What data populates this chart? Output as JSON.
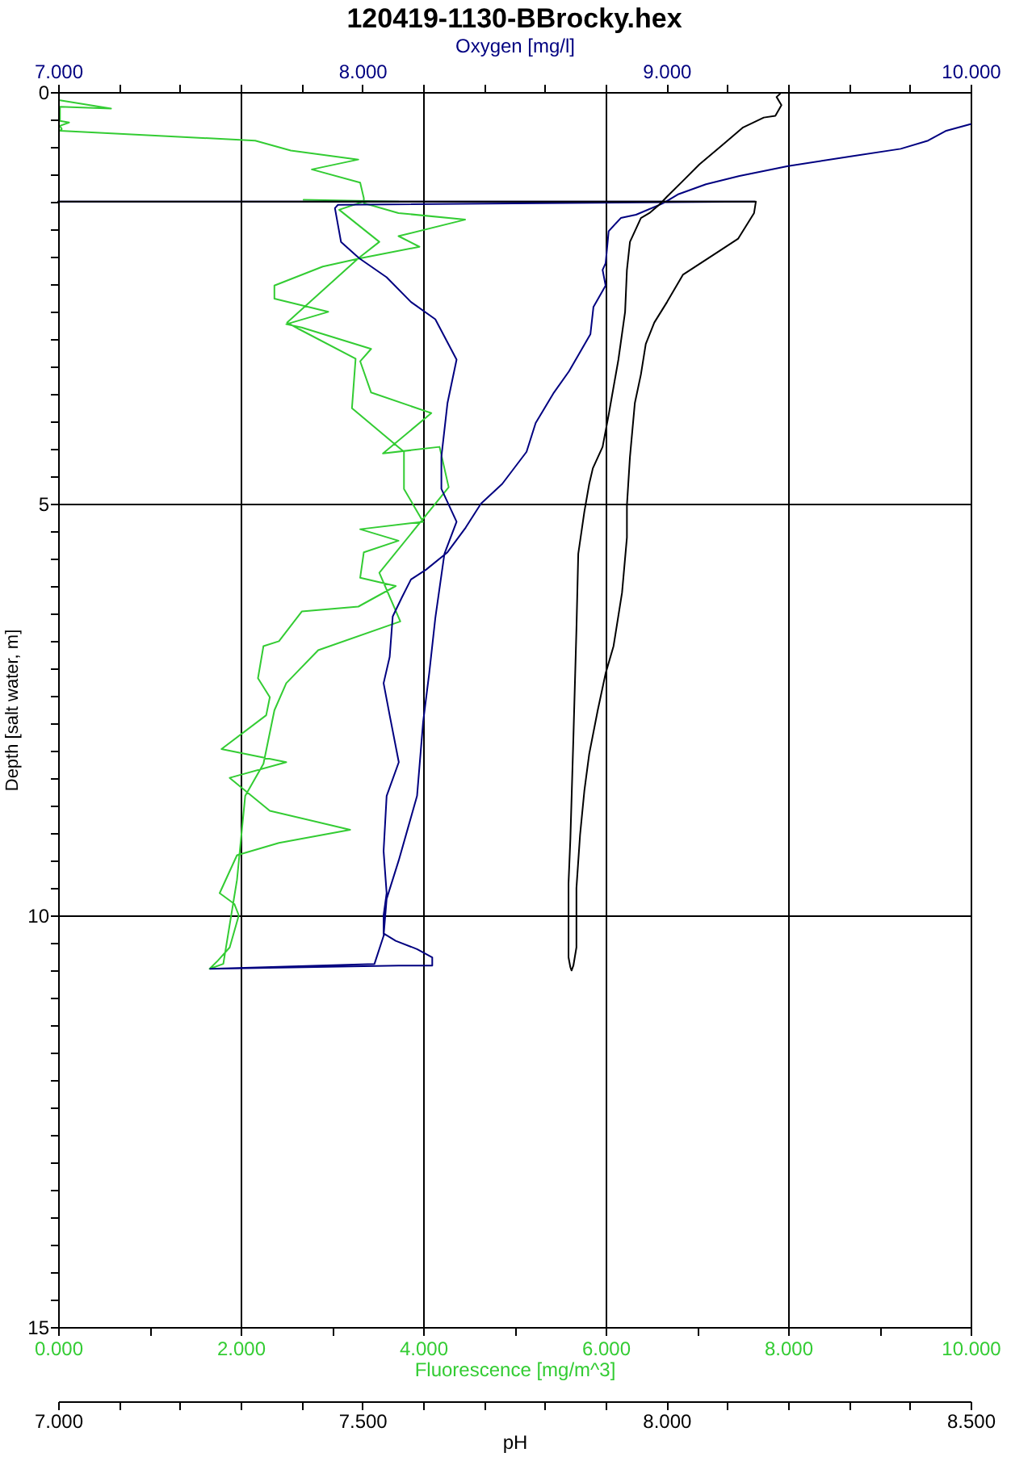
{
  "chart_data": [
    {
      "type": "line",
      "title": "120419-1130-BBrocky.hex",
      "xlabel": "Fluorescence [mg/m^3]",
      "x2label": "Oxygen [mg/l]",
      "ylabel": "Depth [salt water, m]",
      "xlim": [
        0,
        10
      ],
      "xticks": [
        {
          "value": 0,
          "label": "0.000"
        },
        {
          "value": 1,
          "label": null
        },
        {
          "value": 2,
          "label": "2.000"
        },
        {
          "value": 3,
          "label": null
        },
        {
          "value": 4,
          "label": "4.000"
        },
        {
          "value": 5,
          "label": null
        },
        {
          "value": 6,
          "label": "6.000"
        },
        {
          "value": 7,
          "label": null
        },
        {
          "value": 8,
          "label": "8.000"
        },
        {
          "value": 9,
          "label": null
        },
        {
          "value": 10,
          "label": "10.000"
        }
      ],
      "x2lim": [
        7,
        10
      ],
      "x2ticks": [
        {
          "value": 7,
          "label": "7.000"
        },
        {
          "value": 7.2,
          "label": null
        },
        {
          "value": 7.4,
          "label": null
        },
        {
          "value": 7.6,
          "label": null
        },
        {
          "value": 7.8,
          "label": null
        },
        {
          "value": 8,
          "label": "8.000"
        },
        {
          "value": 8.2,
          "label": null
        },
        {
          "value": 8.4,
          "label": null
        },
        {
          "value": 8.6,
          "label": null
        },
        {
          "value": 8.8,
          "label": null
        },
        {
          "value": 9,
          "label": "9.000"
        },
        {
          "value": 9.2,
          "label": null
        },
        {
          "value": 9.4,
          "label": null
        },
        {
          "value": 9.6,
          "label": null
        },
        {
          "value": 9.8,
          "label": null
        },
        {
          "value": 10,
          "label": "10.000"
        }
      ],
      "ylim": [
        15,
        0
      ],
      "yticks": [
        0,
        {
          "value": 0.3333,
          "label": null
        },
        {
          "value": 0.6667,
          "label": null
        },
        {
          "value": 1,
          "label": null
        },
        {
          "value": 1.3333,
          "label": null
        },
        {
          "value": 1.6667,
          "label": null
        },
        {
          "value": 2,
          "label": null
        },
        {
          "value": 2.3333,
          "label": null
        },
        {
          "value": 2.6667,
          "label": null
        },
        {
          "value": 3,
          "label": null
        },
        {
          "value": 3.3333,
          "label": null
        },
        {
          "value": 3.6667,
          "label": null
        },
        {
          "value": 4,
          "label": null
        },
        {
          "value": 4.3333,
          "label": null
        },
        {
          "value": 4.6667,
          "label": null
        },
        5,
        {
          "value": 5.3333,
          "label": null
        },
        {
          "value": 5.6667,
          "label": null
        },
        {
          "value": 6,
          "label": null
        },
        {
          "value": 6.3333,
          "label": null
        },
        {
          "value": 6.6667,
          "label": null
        },
        {
          "value": 7,
          "label": null
        },
        {
          "value": 7.3333,
          "label": null
        },
        {
          "value": 7.6667,
          "label": null
        },
        {
          "value": 8,
          "label": null
        },
        {
          "value": 8.3333,
          "label": null
        },
        {
          "value": 8.6667,
          "label": null
        },
        {
          "value": 9,
          "label": null
        },
        {
          "value": 9.3333,
          "label": null
        },
        {
          "value": 9.6667,
          "label": null
        },
        10,
        {
          "value": 10.3333,
          "label": null
        },
        {
          "value": 10.6667,
          "label": null
        },
        {
          "value": 11,
          "label": null
        },
        {
          "value": 11.3333,
          "label": null
        },
        {
          "value": 11.6667,
          "label": null
        },
        {
          "value": 12,
          "label": null
        },
        {
          "value": 12.3333,
          "label": null
        },
        {
          "value": 12.6667,
          "label": null
        },
        {
          "value": 13,
          "label": null
        },
        {
          "value": 13.3333,
          "label": null
        },
        {
          "value": 13.6667,
          "label": null
        },
        {
          "value": 14,
          "label": null
        },
        {
          "value": 14.3333,
          "label": null
        },
        {
          "value": 14.6667,
          "label": null
        },
        15
      ],
      "grid": true,
      "series": [
        {
          "color": "#33cc33",
          "x": [
            2.69,
            3.73,
            2.96,
            3.35,
            3.08,
            3.52,
            3.29,
            2.51,
            2.64,
            3.26,
            3.22,
            3.79,
            3.79,
            4.0,
            3.31,
            3.73,
            3.35,
            3.31,
            3.7,
            3.29,
            2.67,
            2.42,
            2.25,
            2.19,
            2.32,
            2.28,
            1.79,
            2.5,
            1.88,
            2.32,
            3.2,
            2.42,
            1.96,
            1.77,
            1.93,
            1.98,
            1.88,
            1.75,
            1.66,
            1.81,
            1.96,
            2.05,
            2.25,
            2.37,
            2.5,
            2.85,
            3.75,
            3.52,
            4.28,
            4.18,
            3.56,
            4.09,
            3.43,
            3.31,
            3.43,
            2.67,
            2.5,
            2.96,
            2.37,
            2.37,
            2.9,
            3.31,
            3.96,
            3.73,
            4.46,
            3.73,
            3.35,
            3.35,
            3.31,
            2.78,
            3.29,
            2.55,
            2.16,
            0.02,
            0.04,
            0.02,
            0.12,
            0.02,
            0.02,
            0.58,
            0.02
          ],
          "values": [
            1.31,
            1.33,
            1.33,
            1.33,
            1.43,
            1.82,
            2.02,
            2.8,
            2.88,
            3.24,
            3.84,
            4.37,
            4.82,
            5.22,
            5.31,
            5.45,
            5.59,
            5.9,
            6.0,
            6.25,
            6.31,
            6.67,
            6.73,
            7.12,
            7.35,
            7.57,
            7.98,
            8.14,
            8.33,
            8.73,
            8.96,
            9.12,
            9.27,
            9.73,
            9.86,
            10.0,
            10.39,
            10.55,
            10.65,
            10.59,
            9.57,
            8.55,
            8.16,
            7.51,
            7.18,
            6.78,
            6.43,
            5.84,
            4.8,
            4.31,
            4.39,
            3.9,
            3.65,
            3.27,
            3.12,
            2.86,
            2.82,
            2.67,
            2.51,
            2.35,
            2.12,
            2.02,
            1.88,
            1.75,
            1.55,
            1.47,
            1.35,
            1.29,
            1.1,
            0.94,
            0.82,
            0.71,
            0.59,
            0.47,
            0.45,
            0.41,
            0.37,
            0.35,
            0.18,
            0.2,
            0.1
          ]
        },
        {
          "color": "#000080",
          "axis": "x2",
          "x": [
            7.0,
            9.29,
            7.92,
            7.91,
            7.93,
            7.99,
            8.08,
            8.16,
            8.24,
            8.31,
            8.28,
            8.26,
            8.26,
            8.31,
            8.27,
            8.24,
            8.22,
            8.2,
            8.18,
            8.15,
            8.12,
            8.08,
            8.07,
            8.04,
            7.5,
            8.12,
            8.23,
            8.23,
            8.18,
            8.11,
            8.07,
            8.07,
            8.08,
            8.07,
            8.08,
            8.12,
            8.09,
            8.07,
            8.09,
            8.1,
            8.13,
            8.16,
            8.21,
            8.28,
            8.34,
            8.39,
            8.46,
            8.54,
            8.57,
            8.63,
            8.68,
            8.75,
            8.76,
            8.8,
            8.79,
            8.8,
            8.81,
            8.85,
            8.9,
            8.99,
            9.04,
            9.13,
            9.24,
            9.4,
            9.61,
            9.77,
            9.86,
            9.92,
            10.0
          ],
          "values": [
            1.33,
            1.33,
            1.37,
            1.41,
            1.82,
            2.02,
            2.25,
            2.55,
            2.76,
            3.25,
            3.78,
            4.43,
            4.82,
            5.22,
            5.61,
            6.39,
            7.06,
            7.65,
            8.55,
            8.94,
            9.33,
            9.8,
            10.25,
            10.59,
            10.65,
            10.61,
            10.61,
            10.51,
            10.41,
            10.31,
            10.22,
            10.0,
            9.73,
            9.22,
            8.55,
            8.14,
            7.57,
            7.18,
            6.86,
            6.37,
            6.14,
            5.92,
            5.8,
            5.59,
            5.29,
            5.0,
            4.76,
            4.37,
            4.02,
            3.65,
            3.39,
            2.94,
            2.61,
            2.35,
            2.16,
            2.08,
            1.69,
            1.53,
            1.49,
            1.35,
            1.24,
            1.12,
            1.02,
            0.9,
            0.78,
            0.69,
            0.59,
            0.47,
            0.39
          ]
        }
      ]
    },
    {
      "type": "line",
      "xlabel": "pH",
      "xlim": [
        7,
        8.5
      ],
      "xticks": [
        {
          "value": 7,
          "label": "7.000"
        },
        {
          "value": 7.1,
          "label": null
        },
        {
          "value": 7.2,
          "label": null
        },
        {
          "value": 7.3,
          "label": null
        },
        {
          "value": 7.4,
          "label": null
        },
        {
          "value": 7.5,
          "label": "7.500"
        },
        {
          "value": 7.6,
          "label": null
        },
        {
          "value": 7.7,
          "label": null
        },
        {
          "value": 7.8,
          "label": null
        },
        {
          "value": 7.9,
          "label": null
        },
        {
          "value": 8,
          "label": "8.000"
        },
        {
          "value": 8.1,
          "label": null
        },
        {
          "value": 8.2,
          "label": null
        },
        {
          "value": 8.3,
          "label": null
        },
        {
          "value": 8.4,
          "label": null
        },
        {
          "value": 8.5,
          "label": "8.500"
        }
      ],
      "ylim": [
        15,
        0
      ],
      "tick_labels": "x",
      "series": [
        {
          "color": "#000000",
          "x": [
            7.0,
            8.147,
            8.144,
            8.118,
            8.081,
            8.027,
            8.001,
            7.98,
            7.966,
            7.958,
            7.948,
            7.94,
            7.935,
            7.935,
            7.927,
            7.913,
            7.9,
            7.887,
            7.873,
            7.865,
            7.858,
            7.852,
            7.852,
            7.847,
            7.844,
            7.842,
            7.839,
            7.839,
            7.842,
            7.847,
            7.852,
            7.855,
            7.865,
            7.873,
            7.879,
            7.895,
            7.905,
            7.921,
            7.932,
            7.935,
            7.94,
            7.958,
            7.972,
            7.988,
            8.001,
            8.027,
            8.054,
            8.091,
            8.126,
            8.16,
            8.179,
            8.189,
            8.181,
            8.187
          ],
          "values": [
            1.33,
            1.33,
            1.47,
            1.78,
            1.96,
            2.22,
            2.55,
            2.8,
            3.06,
            3.43,
            3.78,
            4.43,
            5.02,
            5.41,
            6.08,
            6.73,
            7.06,
            7.51,
            8.04,
            8.49,
            9.02,
            9.67,
            10.39,
            10.61,
            10.67,
            10.63,
            10.51,
            9.61,
            9.08,
            7.84,
            6.53,
            5.61,
            5.1,
            4.76,
            4.57,
            4.31,
            3.92,
            3.25,
            2.67,
            2.16,
            1.82,
            1.53,
            1.47,
            1.37,
            1.27,
            1.08,
            0.88,
            0.65,
            0.43,
            0.31,
            0.29,
            0.16,
            0.06,
            0.02
          ]
        }
      ]
    }
  ]
}
